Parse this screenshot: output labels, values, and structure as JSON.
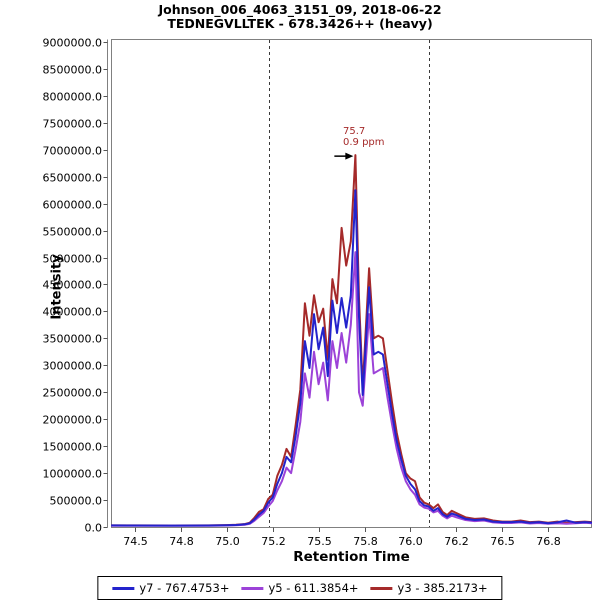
{
  "header": {
    "title_line1": "Johnson_006_4063_3151_09, 2018-06-22",
    "title_line2": "TEDNEGVLLTEK - 678.3426++ (heavy)"
  },
  "chart_data": {
    "type": "line",
    "title": "Johnson_006_4063_3151_09, 2018-06-22",
    "subtitle": "TEDNEGVLLTEK - 678.3426++ (heavy)",
    "xlabel": "Retention Time",
    "ylabel": "Intensity",
    "xlim": [
      74.369,
      76.989
    ],
    "ylim": [
      0,
      9055000
    ],
    "grid": false,
    "legend_position": "bottom",
    "x_ticks": {
      "values": [
        74.5,
        74.75,
        75.0,
        75.25,
        75.5,
        75.75,
        76.0,
        76.25,
        76.5,
        76.75
      ],
      "labels": [
        "74.5",
        "74.8",
        "75.0",
        "75.2",
        "75.5",
        "75.8",
        "76.0",
        "76.2",
        "76.5",
        "76.8"
      ]
    },
    "y_ticks": {
      "values": [
        0,
        500000,
        1000000,
        1500000,
        2000000,
        2500000,
        3000000,
        3500000,
        4000000,
        4500000,
        5000000,
        5500000,
        6000000,
        6500000,
        7000000,
        7500000,
        8000000,
        8500000,
        9000000
      ],
      "labels": [
        "0.0",
        "500000.0",
        "1000000.0",
        "1500000.0",
        "2000000.0",
        "2500000.0",
        "3000000.0",
        "3500000.0",
        "4000000.0",
        "4500000.0",
        "5000000.0",
        "5500000.0",
        "6000000.0",
        "6500000.0",
        "7000000.0",
        "7500000.0",
        "8000000.0",
        "8500000.0",
        "9000000.0"
      ]
    },
    "peak_boundaries": [
      75.23,
      76.1
    ],
    "annotation": {
      "rt": 75.7,
      "intensity": 6900000,
      "line1": "75.7",
      "line2": "0.9 ppm",
      "color": "#A52A2A"
    },
    "x": [
      74.37,
      74.5,
      74.7,
      74.9,
      75.0,
      75.05,
      75.1,
      75.125,
      75.15,
      75.175,
      75.2,
      75.225,
      75.25,
      75.275,
      75.3,
      75.325,
      75.35,
      75.375,
      75.4,
      75.425,
      75.45,
      75.475,
      75.5,
      75.525,
      75.55,
      75.575,
      75.6,
      75.625,
      75.65,
      75.675,
      75.7,
      75.72,
      75.74,
      75.775,
      75.8,
      75.825,
      75.85,
      75.875,
      75.9,
      75.925,
      75.95,
      75.975,
      76.0,
      76.025,
      76.05,
      76.075,
      76.1,
      76.125,
      76.15,
      76.175,
      76.2,
      76.225,
      76.25,
      76.3,
      76.35,
      76.4,
      76.45,
      76.5,
      76.55,
      76.6,
      76.65,
      76.7,
      76.75,
      76.8,
      76.85,
      76.9,
      76.95,
      76.99
    ],
    "series": [
      {
        "name": "y7",
        "label": "y7 - 767.4753+",
        "color": "#2323CC",
        "values": [
          30000,
          28000,
          26000,
          28000,
          32000,
          38000,
          50000,
          70000,
          140000,
          230000,
          300000,
          450000,
          550000,
          800000,
          1000000,
          1300000,
          1200000,
          1700000,
          2300000,
          3450000,
          2950000,
          3950000,
          3300000,
          3700000,
          2800000,
          4200000,
          3600000,
          4250000,
          3700000,
          4300000,
          6250000,
          3900000,
          2450000,
          4450000,
          3200000,
          3250000,
          3200000,
          2650000,
          2100000,
          1600000,
          1250000,
          950000,
          800000,
          700000,
          480000,
          400000,
          380000,
          300000,
          350000,
          240000,
          190000,
          250000,
          220000,
          150000,
          130000,
          140000,
          100000,
          90000,
          90000,
          100000,
          80000,
          90000,
          70000,
          85000,
          120000,
          80000,
          90000,
          80000
        ]
      },
      {
        "name": "y5",
        "label": "y5 - 611.3854+",
        "color": "#9C42D8",
        "values": [
          25000,
          24000,
          22000,
          25000,
          28000,
          33000,
          42000,
          60000,
          115000,
          190000,
          260000,
          380000,
          480000,
          680000,
          850000,
          1100000,
          1000000,
          1450000,
          1950000,
          2850000,
          2400000,
          3250000,
          2650000,
          3050000,
          2350000,
          3450000,
          2950000,
          3600000,
          3050000,
          3750000,
          5100000,
          2500000,
          2250000,
          3950000,
          2850000,
          2900000,
          2950000,
          2400000,
          1900000,
          1450000,
          1100000,
          850000,
          700000,
          600000,
          420000,
          360000,
          340000,
          270000,
          300000,
          210000,
          160000,
          210000,
          180000,
          130000,
          110000,
          120000,
          85000,
          75000,
          75000,
          85000,
          65000,
          75000,
          60000,
          70000,
          60000,
          70000,
          80000,
          70000
        ]
      },
      {
        "name": "y3",
        "label": "y3 - 385.2173+",
        "color": "#A52A2A",
        "values": [
          30000,
          30000,
          28000,
          30000,
          35000,
          40000,
          55000,
          80000,
          170000,
          280000,
          330000,
          520000,
          600000,
          950000,
          1150000,
          1450000,
          1300000,
          1900000,
          2550000,
          4150000,
          3550000,
          4300000,
          3800000,
          4050000,
          3100000,
          4600000,
          4150000,
          5550000,
          4850000,
          5300000,
          6900000,
          4250000,
          2600000,
          4800000,
          3500000,
          3550000,
          3500000,
          2900000,
          2300000,
          1750000,
          1350000,
          1000000,
          900000,
          850000,
          550000,
          450000,
          420000,
          350000,
          420000,
          280000,
          220000,
          300000,
          260000,
          180000,
          150000,
          160000,
          120000,
          100000,
          100000,
          120000,
          90000,
          100000,
          80000,
          100000,
          80000,
          90000,
          100000,
          90000
        ]
      }
    ],
    "colors": {
      "frame": "#808080",
      "boundary": "#3A3A3A",
      "tick": "#555555",
      "text": "#000000"
    }
  },
  "legend": {
    "items": [
      {
        "label": "y7 - 767.4753+"
      },
      {
        "label": "y5 - 611.3854+"
      },
      {
        "label": "y3 - 385.2173+"
      }
    ]
  }
}
